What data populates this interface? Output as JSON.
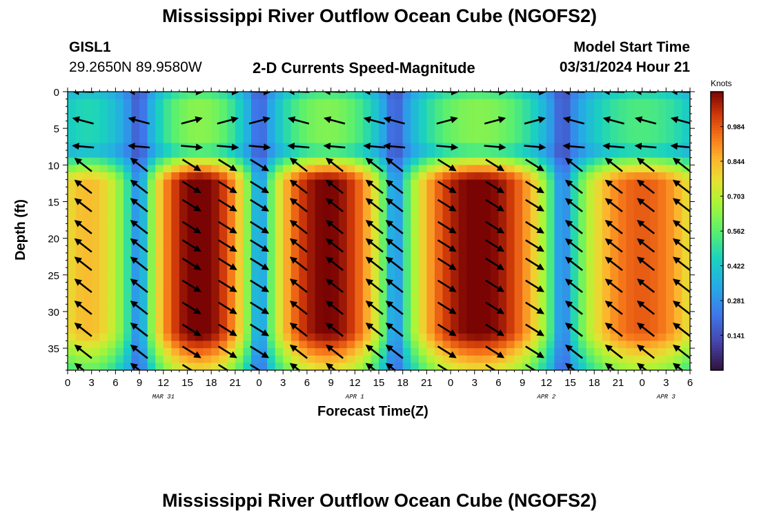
{
  "page_title": "Mississippi River Outflow Ocean Cube (NGOFS2)",
  "footer_title": "Mississippi River Outflow Ocean Cube (NGOFS2)",
  "station": {
    "id": "GISL1",
    "coords": "29.2650N  89.9580W"
  },
  "model": {
    "start_label": "Model Start Time",
    "start_value": "03/31/2024 Hour 21"
  },
  "chart_data": {
    "type": "heatmap",
    "title": "2-D Currents Speed-Magnitude",
    "xlabel": "Forecast Time(Z)",
    "ylabel": "Depth (ft)",
    "x_range_hours": [
      0,
      78
    ],
    "x_ticks": [
      {
        "h": 0,
        "label": "0"
      },
      {
        "h": 3,
        "label": "3"
      },
      {
        "h": 6,
        "label": "6"
      },
      {
        "h": 9,
        "label": "9"
      },
      {
        "h": 12,
        "label": "12"
      },
      {
        "h": 15,
        "label": "15"
      },
      {
        "h": 18,
        "label": "18"
      },
      {
        "h": 21,
        "label": "21"
      },
      {
        "h": 24,
        "label": "0"
      },
      {
        "h": 27,
        "label": "3"
      },
      {
        "h": 30,
        "label": "6"
      },
      {
        "h": 33,
        "label": "9"
      },
      {
        "h": 36,
        "label": "12"
      },
      {
        "h": 39,
        "label": "15"
      },
      {
        "h": 42,
        "label": "18"
      },
      {
        "h": 45,
        "label": "21"
      },
      {
        "h": 48,
        "label": "0"
      },
      {
        "h": 51,
        "label": "3"
      },
      {
        "h": 54,
        "label": "6"
      },
      {
        "h": 57,
        "label": "9"
      },
      {
        "h": 60,
        "label": "12"
      },
      {
        "h": 63,
        "label": "15"
      },
      {
        "h": 66,
        "label": "18"
      },
      {
        "h": 69,
        "label": "21"
      },
      {
        "h": 72,
        "label": "0"
      },
      {
        "h": 75,
        "label": "3"
      },
      {
        "h": 78,
        "label": "6"
      }
    ],
    "date_labels": [
      {
        "h": 12,
        "label": "MAR 31"
      },
      {
        "h": 36,
        "label": "APR 1"
      },
      {
        "h": 60,
        "label": "APR 2"
      },
      {
        "h": 75,
        "label": "APR 3"
      }
    ],
    "y_range_ft": [
      0,
      38
    ],
    "y_ticks": [
      0,
      5,
      10,
      15,
      20,
      25,
      30,
      35
    ],
    "colorbar": {
      "unit": "Knots",
      "min": 0.0,
      "max": 1.125,
      "ticks": [
        0.141,
        0.281,
        0.422,
        0.562,
        0.703,
        0.844,
        0.984
      ]
    },
    "slack_hours": [
      9,
      24,
      41,
      62
    ],
    "peak_speed_by_cycle": [
      {
        "center_h": 3,
        "speed": 0.78
      },
      {
        "center_h": 16.5,
        "speed": 1.09
      },
      {
        "center_h": 32.5,
        "speed": 1.07
      },
      {
        "center_h": 51.5,
        "speed": 1.08
      },
      {
        "center_h": 72,
        "speed": 0.92
      }
    ],
    "arrow_hours": [
      2,
      9,
      15.5,
      20,
      24,
      29,
      33.5,
      38.5,
      41,
      47.5,
      53.5,
      58.5,
      63.5,
      68.5,
      72.5,
      77
    ],
    "arrow_depths_ft": [
      0,
      4,
      7.5,
      10,
      13,
      15.5,
      18.5,
      21,
      23.5,
      26.5,
      29.5,
      32.5,
      35.5,
      38
    ]
  }
}
